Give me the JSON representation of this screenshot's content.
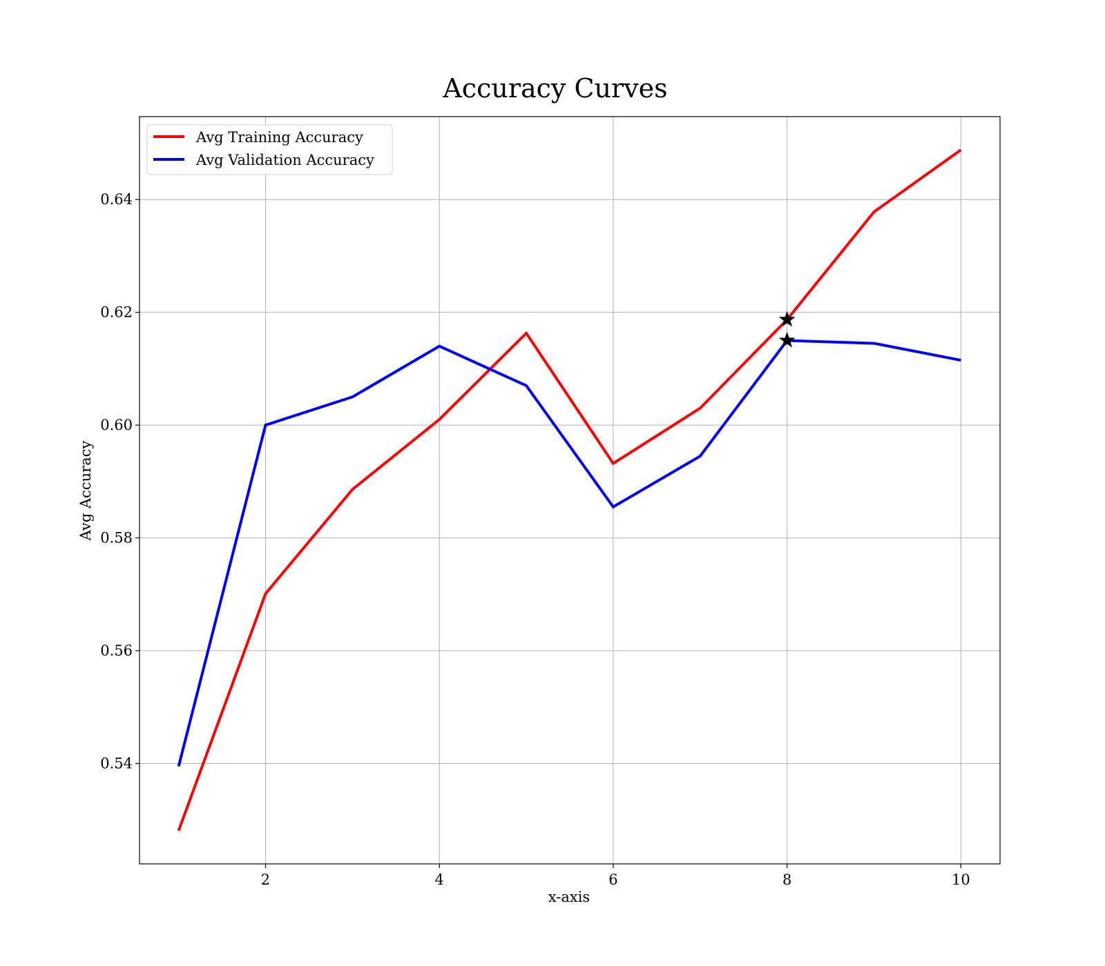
{
  "chart_data": {
    "type": "line",
    "title": "Accuracy Curves",
    "xlabel": "x-axis",
    "ylabel": "Avg Accuracy",
    "xlim": [
      0.55,
      10.45
    ],
    "ylim": [
      0.5222,
      0.6547
    ],
    "xticks": [
      2,
      4,
      6,
      8,
      10
    ],
    "xtick_labels": [
      "2",
      "4",
      "6",
      "8",
      "10"
    ],
    "yticks": [
      0.54,
      0.56,
      0.58,
      0.6,
      0.62,
      0.64
    ],
    "ytick_labels": [
      "0.54",
      "0.56",
      "0.58",
      "0.60",
      "0.62",
      "0.64"
    ],
    "grid": true,
    "legend_position": "top-left",
    "x": [
      1,
      2,
      3,
      4,
      5,
      6,
      7,
      8,
      9,
      10
    ],
    "series": [
      {
        "name": "Avg Training Accuracy",
        "color": "#ff0000",
        "values": [
          0.5281,
          0.5701,
          0.5886,
          0.601,
          0.6163,
          0.5932,
          0.603,
          0.6187,
          0.6378,
          0.6488
        ]
      },
      {
        "name": "Avg Validation Accuracy",
        "color": "#0000ff",
        "values": [
          0.5395,
          0.6,
          0.605,
          0.614,
          0.607,
          0.5855,
          0.5945,
          0.615,
          0.6145,
          0.6115
        ]
      }
    ],
    "markers": [
      {
        "series": "Avg Training Accuracy",
        "x": 8,
        "y": 0.6187,
        "shape": "star",
        "color": "#000000"
      },
      {
        "series": "Avg Validation Accuracy",
        "x": 8,
        "y": 0.615,
        "shape": "star",
        "color": "#000000"
      }
    ]
  }
}
